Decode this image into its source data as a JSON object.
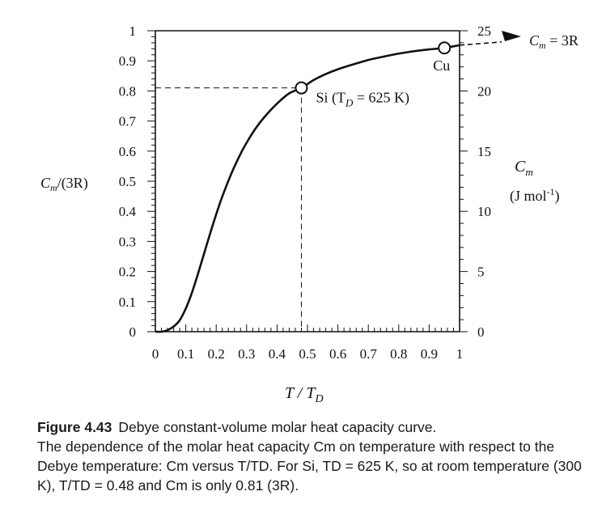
{
  "chart_data": {
    "type": "line",
    "title": "",
    "xlabel_main": "T / T",
    "xlabel_sub": "D",
    "ylabel_left_main": "C",
    "ylabel_left_sub": "m",
    "ylabel_left_rest": "/(3R)",
    "ylabel_right_main": "C",
    "ylabel_right_sub": "m",
    "ylabel_right_units_pre": "(J mol",
    "ylabel_right_units_sup": "-1",
    "ylabel_right_units_post": ")",
    "xlim": [
      0,
      1
    ],
    "ylim_left": [
      0,
      1
    ],
    "ylim_right": [
      0,
      25
    ],
    "x_ticks": [
      "0",
      "0.1",
      "0.2",
      "0.3",
      "0.4",
      "0.5",
      "0.6",
      "0.7",
      "0.8",
      "0.9",
      "1"
    ],
    "y_left_ticks": [
      "0",
      "0.1",
      "0.2",
      "0.3",
      "0.4",
      "0.5",
      "0.6",
      "0.7",
      "0.8",
      "0.9",
      "1"
    ],
    "y_right_ticks": [
      "0",
      "5",
      "10",
      "15",
      "20",
      "25"
    ],
    "series": [
      {
        "x": [
          0.0,
          0.02,
          0.04,
          0.06,
          0.08,
          0.1,
          0.12,
          0.14,
          0.16,
          0.18,
          0.2,
          0.22,
          0.25,
          0.28,
          0.3,
          0.33,
          0.36,
          0.4,
          0.44,
          0.48,
          0.52,
          0.56,
          0.6,
          0.65,
          0.7,
          0.75,
          0.8,
          0.85,
          0.9,
          0.95,
          1.0
        ],
        "y": [
          0.0,
          0.0,
          0.005,
          0.017,
          0.038,
          0.077,
          0.129,
          0.192,
          0.259,
          0.326,
          0.39,
          0.449,
          0.526,
          0.591,
          0.628,
          0.676,
          0.715,
          0.758,
          0.792,
          0.81,
          0.836,
          0.856,
          0.872,
          0.888,
          0.903,
          0.914,
          0.924,
          0.932,
          0.938,
          0.943,
          0.952
        ]
      }
    ],
    "points": [
      {
        "label_main": "Si (T",
        "label_sub": "D",
        "label_rest": " = 625 K)",
        "x": 0.48,
        "y": 0.81
      },
      {
        "label_main": "Cu",
        "label_sub": "",
        "label_rest": "",
        "x": 0.95,
        "y": 0.943
      }
    ],
    "limit_annotation": {
      "main": "C",
      "sub": "m",
      "rest": " = 3R",
      "y": 0.952
    }
  },
  "caption": {
    "figure_number": "Figure 4.43",
    "figure_title": "Debye constant-volume molar heat capacity curve.",
    "body": "The dependence of the molar heat capacity Cm on temperature with respect to the Debye temperature: Cm versus T/TD. For Si, TD = 625 K, so at room temperature (300 K), T/TD = 0.48 and Cm is only 0.81 (3R)."
  }
}
